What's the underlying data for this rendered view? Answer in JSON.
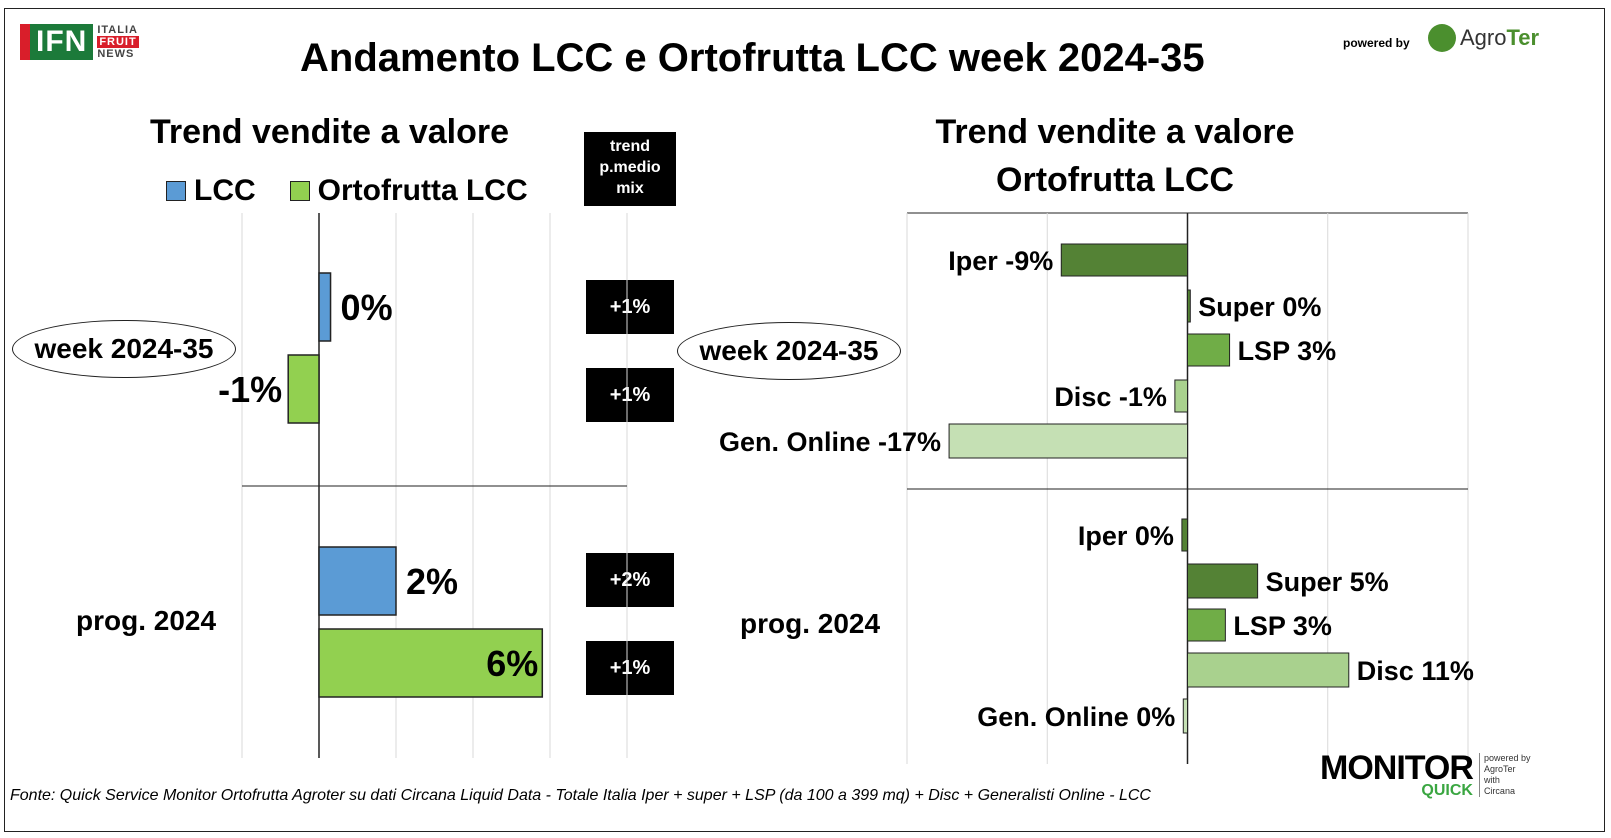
{
  "header": {
    "title": "Andamento LCC e Ortofrutta LCC week 2024-35",
    "ifn_logo": "IFN",
    "ifn_sub": [
      "ITALIA",
      "FRUIT",
      "NEWS"
    ],
    "powered_by": "powered by",
    "agroter_prefix": "Agro",
    "agroter_suffix": "Ter"
  },
  "left": {
    "title": "Trend vendite a valore",
    "legend": [
      {
        "label": "LCC",
        "color": "#5b9bd5"
      },
      {
        "label": "Ortofrutta LCC",
        "color": "#92d050"
      }
    ],
    "trend_header": [
      "trend",
      "p.medio",
      "mix"
    ],
    "trend_values": [
      "+1%",
      "+1%",
      "+2%",
      "+1%"
    ]
  },
  "right": {
    "title_line1": "Trend vendite a valore",
    "title_line2": "Ortofrutta LCC"
  },
  "groups": {
    "week": "week 2024-35",
    "prog": "prog. 2024"
  },
  "chart_data": [
    {
      "type": "bar",
      "orientation": "horizontal",
      "title": "Trend vendite a valore",
      "categories": [
        "week 2024-35",
        "prog. 2024"
      ],
      "series": [
        {
          "name": "LCC",
          "color": "#5b9bd5",
          "values": [
            0.3,
            2
          ],
          "labels": [
            "0%",
            "2%"
          ]
        },
        {
          "name": "Ortofrutta LCC",
          "color": "#92d050",
          "values": [
            -0.8,
            5.8
          ],
          "labels": [
            "-1%",
            "6%"
          ]
        }
      ],
      "xlim": [
        -2,
        8
      ],
      "grid": true
    },
    {
      "type": "bar",
      "orientation": "horizontal",
      "title": "Trend vendite a valore Ortofrutta LCC",
      "groups": [
        {
          "name": "week 2024-35",
          "bars": [
            {
              "channel": "Iper",
              "value": -9,
              "label": "Iper -9%",
              "color": "#548235"
            },
            {
              "channel": "Super",
              "value": 0.2,
              "label": "Super 0%",
              "color": "#548235"
            },
            {
              "channel": "LSP",
              "value": 3,
              "label": "LSP 3%",
              "color": "#70ad47"
            },
            {
              "channel": "Disc",
              "value": -0.9,
              "label": "Disc -1%",
              "color": "#a9d18e"
            },
            {
              "channel": "Gen. Online",
              "value": -17,
              "label": "Gen. Online -17%",
              "color": "#c5e0b4"
            }
          ]
        },
        {
          "name": "prog. 2024",
          "bars": [
            {
              "channel": "Iper",
              "value": -0.4,
              "label": "Iper 0%",
              "color": "#548235"
            },
            {
              "channel": "Super",
              "value": 5,
              "label": "Super 5%",
              "color": "#548235"
            },
            {
              "channel": "LSP",
              "value": 2.7,
              "label": "LSP 3%",
              "color": "#70ad47"
            },
            {
              "channel": "Disc",
              "value": 11.5,
              "label": "Disc 11%",
              "color": "#a9d18e"
            },
            {
              "channel": "Gen. Online",
              "value": -0.3,
              "label": "Gen. Online 0%",
              "color": "#c5e0b4"
            }
          ]
        }
      ],
      "xlim": [
        -20,
        20
      ],
      "grid": true
    }
  ],
  "footer": "Fonte: Quick Service Monitor Ortofrutta Agroter su dati Circana Liquid Data - Totale Italia Iper + super + LSP (da 100 a 399 mq) + Disc + Generalisti Online - LCC",
  "monitor": {
    "brand": "MONITOR",
    "quick": "QUICK",
    "side": [
      "powered by",
      "AgroTer",
      "with",
      "Circana"
    ]
  }
}
